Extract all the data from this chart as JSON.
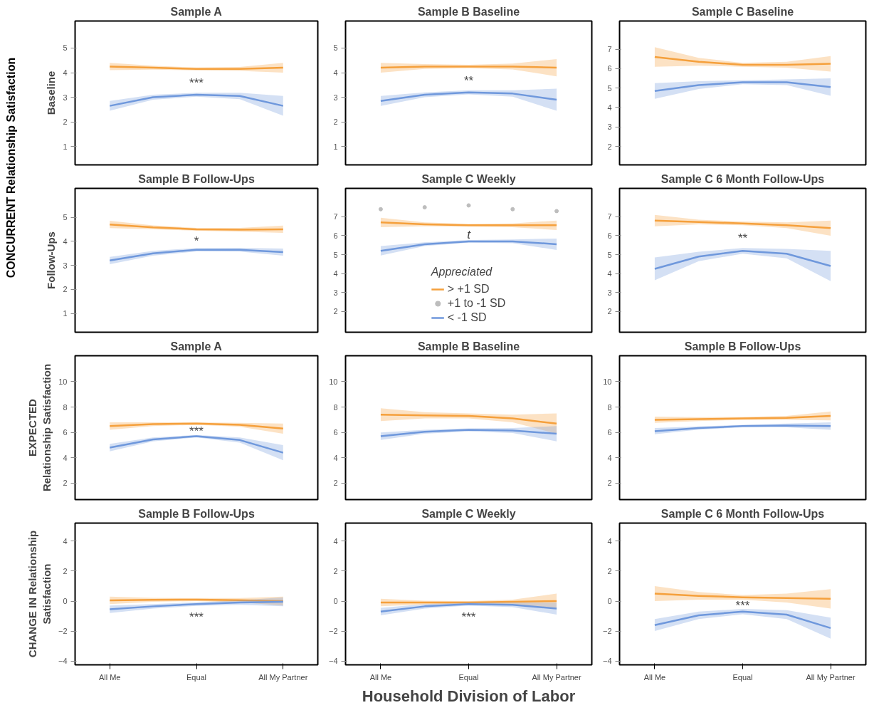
{
  "chart_data": [
    {
      "type": "line",
      "title": "Sample A",
      "ylabel": "Baseline",
      "categories": [
        null,
        null,
        null,
        null,
        null
      ],
      "ylim": [
        0.25,
        6.1
      ],
      "yticks": [
        1,
        2,
        3,
        4,
        5
      ],
      "tick_labels": "y",
      "marker": "none",
      "line_style": "solid",
      "grid": false,
      "legend": false,
      "annotations": [
        "CONCURRENT Relationship Satisfaction",
        "***"
      ],
      "series": [
        {
          "color": "#f5a03c",
          "values": [
            4.25,
            4.2,
            4.15,
            4.15,
            4.2
          ],
          "lower": [
            4.1,
            4.12,
            4.09,
            4.07,
            4.0
          ],
          "upper": [
            4.4,
            4.28,
            4.21,
            4.23,
            4.4
          ]
        },
        {
          "color": "#6f98dc",
          "values": [
            2.65,
            3.0,
            3.1,
            3.05,
            2.65
          ],
          "lower": [
            2.45,
            2.9,
            3.02,
            2.92,
            2.25
          ],
          "upper": [
            2.85,
            3.1,
            3.18,
            3.18,
            3.05
          ]
        }
      ]
    },
    {
      "type": "line",
      "title": "Sample B Baseline",
      "categories": [
        null,
        null,
        null,
        null,
        null
      ],
      "ylim": [
        0.25,
        6.1
      ],
      "yticks": [
        1,
        2,
        3,
        4,
        5
      ],
      "tick_labels": "y",
      "marker": "none",
      "line_style": "solid",
      "grid": false,
      "legend": false,
      "annotations": [
        "**"
      ],
      "series": [
        {
          "color": "#f5a03c",
          "values": [
            4.2,
            4.25,
            4.25,
            4.25,
            4.2
          ],
          "lower": [
            4.0,
            4.15,
            4.18,
            4.13,
            3.85
          ],
          "upper": [
            4.4,
            4.35,
            4.32,
            4.37,
            4.55
          ]
        },
        {
          "color": "#6f98dc",
          "values": [
            2.85,
            3.1,
            3.2,
            3.15,
            2.9
          ],
          "lower": [
            2.65,
            3.0,
            3.12,
            3.02,
            2.45
          ],
          "upper": [
            3.05,
            3.2,
            3.28,
            3.28,
            3.35
          ]
        }
      ]
    },
    {
      "type": "line",
      "title": "Sample C Baseline",
      "categories": [
        null,
        null,
        null,
        null,
        null
      ],
      "ylim": [
        1.05,
        8.45
      ],
      "yticks": [
        2,
        3,
        4,
        5,
        6,
        7
      ],
      "tick_labels": "y",
      "marker": "none",
      "line_style": "solid",
      "grid": false,
      "legend": false,
      "series": [
        {
          "color": "#f5a03c",
          "values": [
            6.6,
            6.35,
            6.2,
            6.2,
            6.25
          ],
          "lower": [
            6.1,
            6.15,
            6.1,
            6.05,
            5.85
          ],
          "upper": [
            7.1,
            6.55,
            6.3,
            6.35,
            6.65
          ]
        },
        {
          "color": "#6f98dc",
          "values": [
            4.85,
            5.15,
            5.3,
            5.3,
            5.05
          ],
          "lower": [
            4.45,
            4.95,
            5.2,
            5.15,
            4.6
          ],
          "upper": [
            5.25,
            5.35,
            5.4,
            5.45,
            5.5
          ]
        }
      ]
    },
    {
      "type": "line",
      "title": "Sample B Follow-Ups",
      "ylabel": "Follow-Ups",
      "categories": [
        null,
        null,
        null,
        null,
        null
      ],
      "ylim": [
        0.22,
        6.2
      ],
      "yticks": [
        1,
        2,
        3,
        4,
        5
      ],
      "tick_labels": "y",
      "marker": "none",
      "line_style": "solid",
      "grid": false,
      "legend": false,
      "annotations": [
        "*"
      ],
      "series": [
        {
          "color": "#f5a03c",
          "values": [
            4.7,
            4.58,
            4.5,
            4.48,
            4.5
          ],
          "lower": [
            4.55,
            4.5,
            4.44,
            4.4,
            4.35
          ],
          "upper": [
            4.85,
            4.66,
            4.56,
            4.56,
            4.65
          ]
        },
        {
          "color": "#6f98dc",
          "values": [
            3.2,
            3.5,
            3.65,
            3.65,
            3.55
          ],
          "lower": [
            3.05,
            3.4,
            3.58,
            3.57,
            3.4
          ],
          "upper": [
            3.35,
            3.6,
            3.72,
            3.73,
            3.7
          ]
        }
      ]
    },
    {
      "type": "line",
      "title": "Sample C Weekly",
      "legend_title": "Appreciated",
      "categories": [
        null,
        null,
        null,
        null,
        null
      ],
      "ylim": [
        0.9,
        8.5
      ],
      "yticks": [
        2,
        3,
        4,
        5,
        6,
        7
      ],
      "tick_labels": "y",
      "marker": "none",
      "line_style": "solid",
      "grid": false,
      "legend": "bottom",
      "annotations": [
        "t"
      ],
      "series": [
        {
          "name": "> +1 SD",
          "color": "#f5a03c",
          "values": [
            6.7,
            6.6,
            6.55,
            6.55,
            6.55
          ],
          "lower": [
            6.45,
            6.5,
            6.48,
            6.45,
            6.3
          ],
          "upper": [
            6.95,
            6.7,
            6.62,
            6.65,
            6.8
          ]
        },
        {
          "name": "+1 to -1 SD",
          "type": "scatter",
          "marker": "circle",
          "color": "#bdbdbd",
          "values": [
            7.4,
            7.5,
            7.6,
            7.4,
            7.3
          ]
        },
        {
          "name": "< -1 SD",
          "color": "#6f98dc",
          "values": [
            5.2,
            5.55,
            5.7,
            5.7,
            5.55
          ],
          "lower": [
            4.95,
            5.45,
            5.63,
            5.6,
            5.25
          ],
          "upper": [
            5.45,
            5.65,
            5.77,
            5.8,
            5.85
          ]
        }
      ]
    },
    {
      "type": "line",
      "title": "Sample C 6 Month Follow-Ups",
      "categories": [
        null,
        null,
        null,
        null,
        null
      ],
      "ylim": [
        0.9,
        8.5
      ],
      "yticks": [
        2,
        3,
        4,
        5,
        6,
        7
      ],
      "tick_labels": "y",
      "marker": "none",
      "line_style": "solid",
      "grid": false,
      "legend": false,
      "annotations": [
        "**"
      ],
      "series": [
        {
          "color": "#f5a03c",
          "values": [
            6.8,
            6.72,
            6.65,
            6.55,
            6.4
          ],
          "lower": [
            6.5,
            6.6,
            6.55,
            6.4,
            6.0
          ],
          "upper": [
            7.1,
            6.84,
            6.75,
            6.7,
            6.8
          ]
        },
        {
          "color": "#6f98dc",
          "values": [
            4.25,
            4.9,
            5.2,
            5.05,
            4.4
          ],
          "lower": [
            3.65,
            4.65,
            5.05,
            4.8,
            3.6
          ],
          "upper": [
            4.85,
            5.15,
            5.35,
            5.3,
            5.2
          ]
        }
      ]
    },
    {
      "type": "line",
      "title": "Sample A",
      "ylabel": "EXPECTED Relationship Satisfaction",
      "categories": [
        null,
        null,
        null,
        null,
        null
      ],
      "ylim": [
        0.7,
        12.05
      ],
      "yticks": [
        2,
        4,
        6,
        8,
        10
      ],
      "tick_labels": "y",
      "marker": "none",
      "line_style": "solid",
      "grid": false,
      "legend": false,
      "annotations": [
        "***"
      ],
      "series": [
        {
          "color": "#f5a03c",
          "values": [
            6.5,
            6.65,
            6.7,
            6.6,
            6.3
          ],
          "lower": [
            6.2,
            6.5,
            6.6,
            6.45,
            5.9
          ],
          "upper": [
            6.8,
            6.8,
            6.8,
            6.75,
            6.7
          ]
        },
        {
          "color": "#6f98dc",
          "values": [
            4.8,
            5.45,
            5.7,
            5.4,
            4.4
          ],
          "lower": [
            4.5,
            5.3,
            5.6,
            5.2,
            3.8
          ],
          "upper": [
            5.1,
            5.6,
            5.8,
            5.6,
            5.0
          ]
        }
      ]
    },
    {
      "type": "line",
      "title": "Sample B Baseline",
      "categories": [
        null,
        null,
        null,
        null,
        null
      ],
      "ylim": [
        0.7,
        12.05
      ],
      "yticks": [
        2,
        4,
        6,
        8,
        10
      ],
      "tick_labels": "y",
      "marker": "none",
      "line_style": "solid",
      "grid": false,
      "legend": false,
      "series": [
        {
          "color": "#f5a03c",
          "values": [
            7.4,
            7.35,
            7.3,
            7.1,
            6.7
          ],
          "lower": [
            6.9,
            7.1,
            7.1,
            6.8,
            5.9
          ],
          "upper": [
            7.9,
            7.6,
            7.5,
            7.4,
            7.5
          ]
        },
        {
          "color": "#6f98dc",
          "values": [
            5.7,
            6.05,
            6.2,
            6.15,
            5.9
          ],
          "lower": [
            5.4,
            5.9,
            6.08,
            5.95,
            5.3
          ],
          "upper": [
            6.0,
            6.2,
            6.32,
            6.35,
            6.5
          ]
        }
      ]
    },
    {
      "type": "line",
      "title": "Sample B Follow-Ups",
      "categories": [
        null,
        null,
        null,
        null,
        null
      ],
      "ylim": [
        0.7,
        12.05
      ],
      "yticks": [
        2,
        4,
        6,
        8,
        10
      ],
      "tick_labels": "y",
      "marker": "none",
      "line_style": "solid",
      "grid": false,
      "legend": false,
      "series": [
        {
          "color": "#f5a03c",
          "values": [
            7.0,
            7.05,
            7.1,
            7.15,
            7.3
          ],
          "lower": [
            6.75,
            6.9,
            6.98,
            7.0,
            6.95
          ],
          "upper": [
            7.25,
            7.2,
            7.22,
            7.3,
            7.65
          ]
        },
        {
          "color": "#6f98dc",
          "values": [
            6.1,
            6.35,
            6.5,
            6.55,
            6.5
          ],
          "lower": [
            5.85,
            6.22,
            6.4,
            6.4,
            6.2
          ],
          "upper": [
            6.35,
            6.48,
            6.6,
            6.7,
            6.8
          ]
        }
      ]
    },
    {
      "type": "line",
      "title": "Sample B Follow-Ups",
      "ylabel": "CHANGE IN Relationship Satisfaction",
      "categories": [
        "All Me",
        null,
        "Equal",
        null,
        "All My Partner"
      ],
      "ylim": [
        -4.25,
        5.2
      ],
      "yticks": [
        -4,
        -2,
        0,
        2,
        4
      ],
      "marker": "none",
      "line_style": "solid",
      "grid": false,
      "legend": false,
      "annotations": [
        "***"
      ],
      "series": [
        {
          "color": "#f5a03c",
          "values": [
            0.05,
            0.08,
            0.1,
            0.06,
            0.0
          ],
          "lower": [
            -0.2,
            -0.05,
            0.0,
            -0.08,
            -0.3
          ],
          "upper": [
            0.3,
            0.21,
            0.2,
            0.2,
            0.3
          ]
        },
        {
          "color": "#6f98dc",
          "values": [
            -0.55,
            -0.35,
            -0.2,
            -0.1,
            -0.05
          ],
          "lower": [
            -0.8,
            -0.5,
            -0.32,
            -0.25,
            -0.35
          ],
          "upper": [
            -0.3,
            -0.2,
            -0.08,
            0.05,
            0.25
          ]
        }
      ]
    },
    {
      "type": "line",
      "title": "Sample C Weekly",
      "xlabel": "Household Division of Labor",
      "categories": [
        "All Me",
        null,
        "Equal",
        null,
        "All My Partner"
      ],
      "ylim": [
        -4.25,
        5.2
      ],
      "yticks": [
        -4,
        -2,
        0,
        2,
        4
      ],
      "marker": "none",
      "line_style": "solid",
      "grid": false,
      "legend": false,
      "annotations": [
        "***"
      ],
      "series": [
        {
          "color": "#f5a03c",
          "values": [
            -0.1,
            -0.1,
            -0.1,
            -0.05,
            0.0
          ],
          "lower": [
            -0.35,
            -0.22,
            -0.2,
            -0.2,
            -0.5
          ],
          "upper": [
            0.15,
            0.02,
            0.0,
            0.1,
            0.5
          ]
        },
        {
          "color": "#6f98dc",
          "values": [
            -0.7,
            -0.35,
            -0.2,
            -0.25,
            -0.5
          ],
          "lower": [
            -0.95,
            -0.5,
            -0.3,
            -0.4,
            -0.9
          ],
          "upper": [
            -0.45,
            -0.2,
            -0.1,
            -0.1,
            -0.1
          ]
        }
      ]
    },
    {
      "type": "line",
      "title": "Sample C 6 Month Follow-Ups",
      "categories": [
        "All Me",
        null,
        "Equal",
        null,
        "All My Partner"
      ],
      "ylim": [
        -4.25,
        5.2
      ],
      "yticks": [
        -4,
        -2,
        0,
        2,
        4
      ],
      "marker": "none",
      "line_style": "solid",
      "grid": false,
      "legend": false,
      "annotations": [
        "***"
      ],
      "series": [
        {
          "color": "#f5a03c",
          "values": [
            0.5,
            0.35,
            0.25,
            0.2,
            0.15
          ],
          "lower": [
            0.0,
            0.1,
            0.1,
            -0.1,
            -0.5
          ],
          "upper": [
            1.0,
            0.6,
            0.4,
            0.5,
            0.8
          ]
        },
        {
          "color": "#6f98dc",
          "values": [
            -1.6,
            -0.95,
            -0.7,
            -0.9,
            -1.8
          ],
          "lower": [
            -2.0,
            -1.2,
            -0.88,
            -1.2,
            -2.5
          ],
          "upper": [
            -1.2,
            -0.7,
            -0.52,
            -0.6,
            -1.1
          ]
        }
      ]
    }
  ]
}
